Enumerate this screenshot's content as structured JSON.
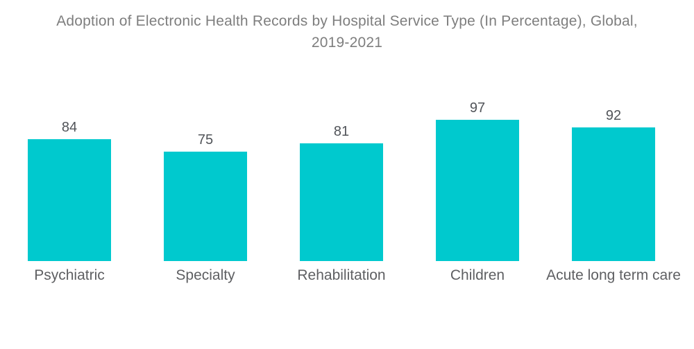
{
  "header": {
    "title_line1": "Adoption of Electronic Health Records by Hospital Service Type (In Percentage), Global,",
    "title_line2": "2019-2021"
  },
  "chart_data": {
    "type": "bar",
    "title": "Adoption of Electronic Health Records by Hospital Service Type (In Percentage), Global, 2019-2021",
    "categories": [
      "Psychiatric",
      "Specialty",
      "Rehabilitation",
      "Children",
      "Acute long term care"
    ],
    "values": [
      84,
      75,
      81,
      97,
      92
    ],
    "unit": "percent",
    "xlabel": "",
    "ylabel": "",
    "ylim": [
      0,
      100
    ],
    "grid": false,
    "legend": false,
    "data_labels": "above-bars",
    "orientation": "vertical",
    "colors": {
      "bar": "#00c9ce",
      "title_text": "#7e7e7e",
      "value_label_text": "#515459",
      "category_label_text": "#5e5f62",
      "background": "#ffffff"
    }
  }
}
